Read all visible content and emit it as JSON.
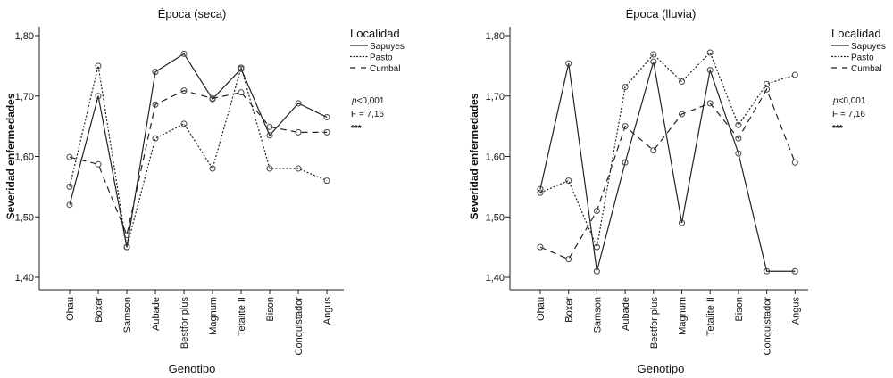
{
  "chart_data": [
    {
      "type": "line",
      "title": "Época (seca)",
      "xlabel": "Genotipo",
      "ylabel": "Severidad enfermedades",
      "ylim": [
        1.4,
        1.8
      ],
      "yticks": [
        "1,40",
        "1,50",
        "1,60",
        "1,70",
        "1,80"
      ],
      "categories": [
        "Ohau",
        "Boxer",
        "Samson",
        "Aubade",
        "Bestfor plus",
        "Magnum",
        "Tetalite II",
        "Bison",
        "Conquistador",
        "Angus"
      ],
      "legend_title": "Localidad",
      "legend_position": "right",
      "series": [
        {
          "name": "Sapuyes",
          "style": "solid",
          "values": [
            1.52,
            1.7,
            1.45,
            1.74,
            1.77,
            1.695,
            1.745,
            1.635,
            1.688,
            1.665
          ]
        },
        {
          "name": "Pasto",
          "style": "dotted",
          "values": [
            1.55,
            1.75,
            1.45,
            1.63,
            1.654,
            1.58,
            1.747,
            1.58,
            1.58,
            1.56
          ]
        },
        {
          "name": "Cumbal",
          "style": "dashed",
          "values": [
            1.599,
            1.587,
            1.47,
            1.686,
            1.709,
            1.696,
            1.706,
            1.649,
            1.64,
            1.64
          ]
        }
      ],
      "annotations": {
        "p": "<0,001",
        "p_label": "p",
        "f": "F = 7,16",
        "stars": "***"
      }
    },
    {
      "type": "line",
      "title": "Época (lluvia)",
      "xlabel": "Genotipo",
      "ylabel": "Severidad enfermedades",
      "ylim": [
        1.4,
        1.8
      ],
      "yticks": [
        "1,40",
        "1,50",
        "1,60",
        "1,70",
        "1,80"
      ],
      "categories": [
        "Ohau",
        "Boxer",
        "Samson",
        "Aubade",
        "Bestfor plus",
        "Magnum",
        "Tetalite II",
        "Bison",
        "Conquistador",
        "Angus"
      ],
      "legend_title": "Localidad",
      "legend_position": "right",
      "series": [
        {
          "name": "Sapuyes",
          "style": "solid",
          "values": [
            1.546,
            1.754,
            1.41,
            1.59,
            1.757,
            1.49,
            1.743,
            1.605,
            1.41,
            1.41
          ]
        },
        {
          "name": "Pasto",
          "style": "dotted",
          "values": [
            1.54,
            1.56,
            1.45,
            1.715,
            1.769,
            1.724,
            1.772,
            1.652,
            1.72,
            1.735
          ]
        },
        {
          "name": "Cumbal",
          "style": "dashed",
          "values": [
            1.45,
            1.43,
            1.51,
            1.65,
            1.61,
            1.67,
            1.688,
            1.63,
            1.711,
            1.59
          ]
        }
      ],
      "annotations": {
        "p": "<0,001",
        "p_label": "p",
        "f": "F = 7,16",
        "stars": "***"
      }
    }
  ]
}
